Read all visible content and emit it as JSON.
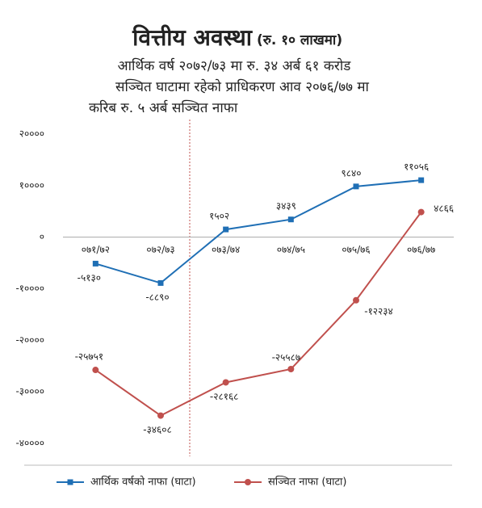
{
  "chart_data": {
    "type": "line",
    "title": "वित्तीय अवस्था",
    "unit": "(रु. १० लाखमा)",
    "subtitle": [
      "आर्थिक वर्ष २०७२/७३ मा रु. ३४ अर्ब ६१ करोड",
      "सञ्चित घाटामा रहेको प्राधिकरण आव २०७६/७७ मा",
      "करिब रु. ५ अर्ब सञ्चित नाफा"
    ],
    "categories": [
      "०७१/७२",
      "०७२/७३",
      "०७३/७४",
      "०७४/७५",
      "०७५/७६",
      "०७६/७७"
    ],
    "series": [
      {
        "name": "आर्थिक वर्षको नाफा (घाटा)",
        "color": "#1f6fb5",
        "marker": "square",
        "values": [
          -5130,
          -8890,
          1502,
          3439,
          9840,
          11056
        ],
        "value_labels": [
          "-५१३०",
          "-८८९०",
          "१५०२",
          "३४३९",
          "९८४०",
          "११०५६"
        ]
      },
      {
        "name": "सञ्चित नाफा (घाटा)",
        "color": "#c0504d",
        "marker": "circle",
        "values": [
          -25751,
          -34608,
          -28168,
          -25587,
          -12234,
          4866
        ],
        "value_labels": [
          "-२५७५१",
          "-३४६०८",
          "-२८१६८",
          "-२५५८७",
          "-१२२३४",
          "४८६६"
        ]
      }
    ],
    "ylim": [
      -40000,
      20000
    ],
    "yticks": [
      {
        "value": 20000,
        "label": "२००००"
      },
      {
        "value": 10000,
        "label": "१००००"
      },
      {
        "value": 0,
        "label": "०"
      },
      {
        "value": -10000,
        "label": "-१००००"
      },
      {
        "value": -20000,
        "label": "-२००००"
      },
      {
        "value": -30000,
        "label": "-३००००"
      },
      {
        "value": -40000,
        "label": "-४००००"
      }
    ],
    "grid": false,
    "legend": "bottom"
  }
}
